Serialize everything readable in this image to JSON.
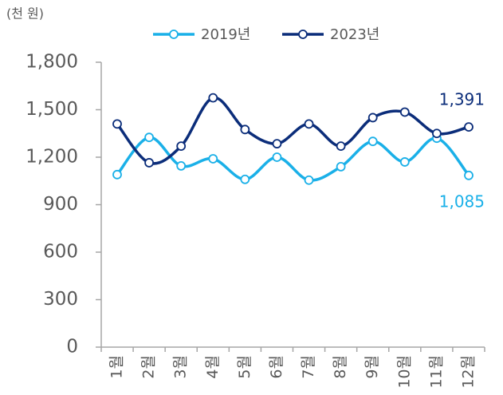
{
  "chart_data": {
    "type": "line",
    "unit_label": "(천 원)",
    "categories": [
      "1월",
      "2월",
      "3월",
      "4월",
      "5월",
      "6월",
      "7월",
      "8월",
      "9월",
      "10월",
      "11월",
      "12월"
    ],
    "series": [
      {
        "name": "2019년",
        "color": "#1ab0e8",
        "values": [
          1090,
          1325,
          1145,
          1190,
          1060,
          1200,
          1055,
          1140,
          1300,
          1170,
          1320,
          1085
        ],
        "value_labels": [
          null,
          null,
          null,
          null,
          null,
          null,
          null,
          null,
          null,
          null,
          null,
          "1,085"
        ]
      },
      {
        "name": "2023년",
        "color": "#0b2d7a",
        "values": [
          1410,
          1165,
          1270,
          1575,
          1375,
          1285,
          1410,
          1270,
          1450,
          1485,
          1350,
          1391
        ],
        "value_labels": [
          null,
          null,
          null,
          null,
          null,
          null,
          null,
          null,
          null,
          null,
          null,
          "1,391"
        ]
      }
    ],
    "ylim": [
      0,
      1800
    ],
    "yticks": [
      0,
      300,
      600,
      900,
      {
        "value": 1200,
        "label": "1,200"
      },
      {
        "value": 1500,
        "label": "1,500"
      },
      {
        "value": 1800,
        "label": "1,800"
      }
    ],
    "legend": "top"
  }
}
